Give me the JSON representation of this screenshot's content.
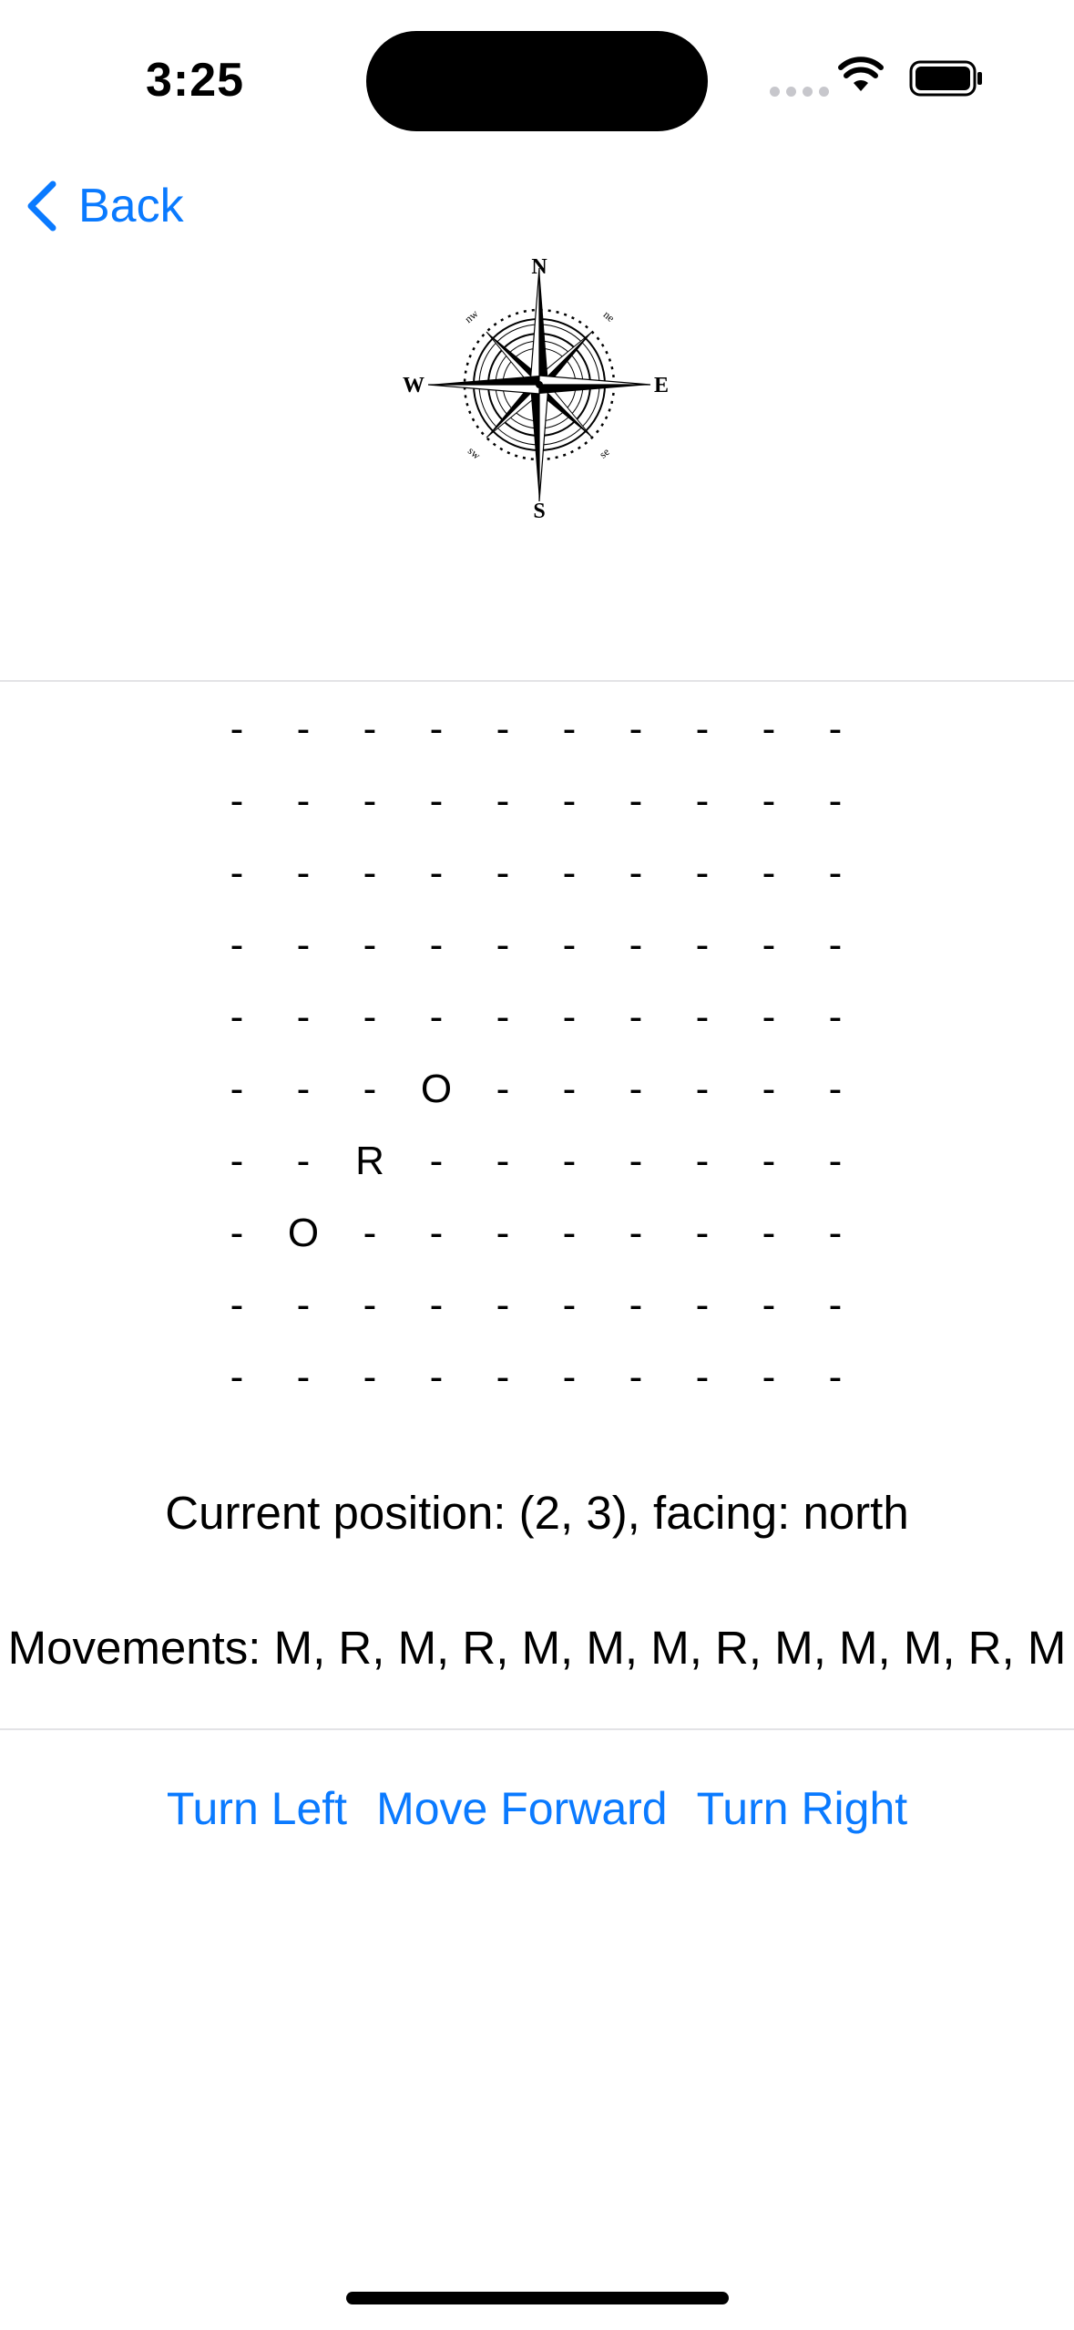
{
  "status_bar": {
    "time": "3:25"
  },
  "nav": {
    "back_label": "Back"
  },
  "compass": {
    "n": "N",
    "s": "S",
    "e": "E",
    "w": "W",
    "nw": "nw",
    "ne": "ne",
    "sw": "sw",
    "se": "se"
  },
  "grid": [
    [
      "-",
      "-",
      "-",
      "-",
      "-",
      "-",
      "-",
      "-",
      "-",
      "-"
    ],
    [
      "-",
      "-",
      "-",
      "-",
      "-",
      "-",
      "-",
      "-",
      "-",
      "-"
    ],
    [
      "-",
      "-",
      "-",
      "-",
      "-",
      "-",
      "-",
      "-",
      "-",
      "-"
    ],
    [
      "-",
      "-",
      "-",
      "-",
      "-",
      "-",
      "-",
      "-",
      "-",
      "-"
    ],
    [
      "-",
      "-",
      "-",
      "-",
      "-",
      "-",
      "-",
      "-",
      "-",
      "-"
    ],
    [
      "-",
      "-",
      "-",
      "O",
      "-",
      "-",
      "-",
      "-",
      "-",
      "-"
    ],
    [
      "-",
      "-",
      "R",
      "-",
      "-",
      "-",
      "-",
      "-",
      "-",
      "-"
    ],
    [
      "-",
      "O",
      "-",
      "-",
      "-",
      "-",
      "-",
      "-",
      "-",
      "-"
    ],
    [
      "-",
      "-",
      "-",
      "-",
      "-",
      "-",
      "-",
      "-",
      "-",
      "-"
    ],
    [
      "-",
      "-",
      "-",
      "-",
      "-",
      "-",
      "-",
      "-",
      "-",
      "-"
    ]
  ],
  "position_text": "Current position: (2, 3), facing: north",
  "movements_text": "Movements: M, R, M, R, M, M, M, R, M, M, M, R, M",
  "actions": {
    "turn_left": "Turn Left",
    "move_forward": "Move Forward",
    "turn_right": "Turn Right"
  },
  "colors": {
    "accent": "#0a7aff"
  }
}
